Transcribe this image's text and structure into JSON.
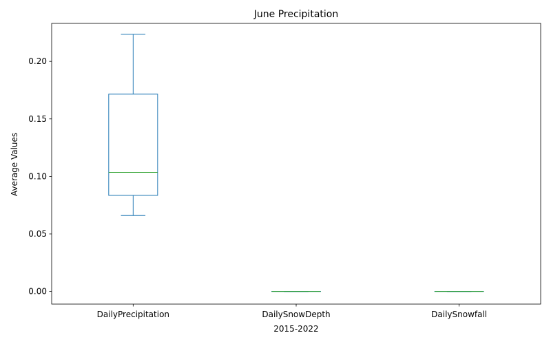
{
  "chart_data": {
    "type": "box",
    "title": "June Precipitation",
    "xlabel": "2015-2022",
    "ylabel": "Average Values",
    "ylim": [
      -0.011,
      0.233
    ],
    "yticks": [
      0.0,
      0.05,
      0.1,
      0.15,
      0.2
    ],
    "ytick_labels": [
      "0.00",
      "0.05",
      "0.10",
      "0.15",
      "0.20"
    ],
    "categories": [
      "DailyPrecipitation",
      "DailySnowDepth",
      "DailySnowfall"
    ],
    "boxes": [
      {
        "whisker_low": 0.066,
        "q1": 0.0835,
        "median": 0.1035,
        "q3": 0.1715,
        "whisker_high": 0.2235
      },
      {
        "whisker_low": 0.0,
        "q1": 0.0,
        "median": 0.0,
        "q3": 0.0,
        "whisker_high": 0.0
      },
      {
        "whisker_low": 0.0,
        "q1": 0.0,
        "median": 0.0,
        "q3": 0.0,
        "whisker_high": 0.0
      }
    ],
    "colors": {
      "box": "#1f77b4",
      "median": "#2ca02c",
      "axes": "#000000"
    },
    "grid": false,
    "legend": false
  }
}
